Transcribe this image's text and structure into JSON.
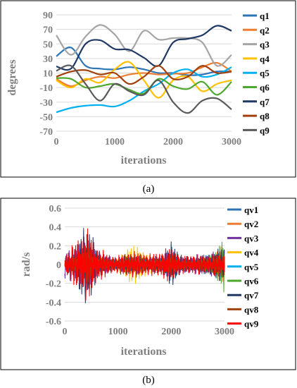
{
  "chart_data": [
    {
      "type": "line",
      "caption": "(a)",
      "xlabel": "iterations",
      "ylabel": "degrees",
      "xlim": [
        0,
        3000
      ],
      "ylim": [
        -70,
        90
      ],
      "xticks": [
        "0",
        "1000",
        "2000",
        "3000"
      ],
      "yticks": [
        "90",
        "70",
        "50",
        "30",
        "10",
        "-10",
        "-30",
        "-50",
        "-70"
      ],
      "grid": "horizontal",
      "legend_position": "right",
      "x": [
        0,
        250,
        500,
        750,
        1000,
        1250,
        1500,
        1750,
        2000,
        2250,
        2500,
        2750,
        3000
      ],
      "series": [
        {
          "name": "q1",
          "color": "#2e75b6",
          "values": [
            33,
            45,
            20,
            16,
            15,
            18,
            15,
            10,
            10,
            7,
            8,
            12,
            12
          ]
        },
        {
          "name": "q2",
          "color": "#ed7d31",
          "values": [
            2,
            -8,
            0,
            5,
            3,
            8,
            10,
            8,
            9,
            10,
            18,
            24,
            12
          ]
        },
        {
          "name": "q3",
          "color": "#a5a5a5",
          "values": [
            62,
            35,
            60,
            76,
            63,
            40,
            68,
            56,
            58,
            58,
            52,
            20,
            35
          ]
        },
        {
          "name": "q4",
          "color": "#ffc000",
          "values": [
            0,
            -10,
            2,
            -3,
            15,
            25,
            0,
            -24,
            0,
            5,
            -15,
            -5,
            0
          ]
        },
        {
          "name": "q5",
          "color": "#00b0f0",
          "values": [
            -44,
            -38,
            -35,
            -34,
            -36,
            -28,
            -15,
            -5,
            10,
            15,
            5,
            8,
            18
          ]
        },
        {
          "name": "q6",
          "color": "#4ea72e",
          "values": [
            3,
            2,
            -10,
            -8,
            -5,
            -13,
            -18,
            2,
            -8,
            -12,
            -2,
            -20,
            -2
          ]
        },
        {
          "name": "q7",
          "color": "#1f3864",
          "values": [
            19,
            16,
            50,
            55,
            43,
            42,
            31,
            20,
            52,
            57,
            62,
            75,
            68
          ]
        },
        {
          "name": "q8",
          "color": "#a0410e",
          "values": [
            5,
            12,
            14,
            8,
            10,
            -5,
            5,
            20,
            2,
            5,
            20,
            10,
            12
          ]
        },
        {
          "name": "q9",
          "color": "#595959",
          "values": [
            13,
            20,
            -5,
            -28,
            -5,
            -15,
            -20,
            0,
            -30,
            -45,
            -28,
            -25,
            -40
          ]
        }
      ]
    },
    {
      "type": "line",
      "caption": "(b)",
      "xlabel": "iterations",
      "ylabel": "rad/s",
      "xlim": [
        0,
        3000
      ],
      "ylim": [
        -0.6,
        0.6
      ],
      "xticks": [
        "0",
        "1000",
        "2000",
        "3000"
      ],
      "yticks": [
        "0.6",
        "0.4",
        "0.2",
        "0",
        "-0.2",
        "-0.4",
        "-0.6"
      ],
      "grid": "horizontal",
      "legend_position": "right",
      "x": [
        0,
        200,
        400,
        600,
        800,
        1000,
        1200,
        1400,
        1600,
        1800,
        2000,
        2200,
        2400,
        2600,
        2800,
        3000
      ],
      "series": [
        {
          "name": "qv1",
          "color": "#2e75b6",
          "values": [
            0.05,
            0.12,
            0.28,
            0.1,
            0.08,
            0.06,
            0.12,
            0.1,
            0.08,
            0.06,
            0.2,
            0.08,
            0.06,
            0.08,
            0.1,
            0.15
          ]
        },
        {
          "name": "qv2",
          "color": "#ed7d31",
          "values": [
            0.04,
            0.1,
            0.22,
            0.12,
            0.06,
            0.07,
            0.1,
            0.08,
            0.06,
            0.07,
            0.12,
            0.06,
            0.05,
            0.08,
            0.1,
            0.26
          ]
        },
        {
          "name": "qv3",
          "color": "#7030a0",
          "values": [
            0.18,
            0.2,
            0.3,
            0.15,
            0.1,
            0.08,
            0.1,
            0.12,
            0.08,
            0.1,
            0.15,
            0.08,
            0.1,
            0.12,
            0.14,
            0.12
          ]
        },
        {
          "name": "qv4",
          "color": "#ffc000",
          "values": [
            0.05,
            0.08,
            0.1,
            0.08,
            0.05,
            0.06,
            0.22,
            0.2,
            0.1,
            0.08,
            0.1,
            0.06,
            0.05,
            0.08,
            0.1,
            0.15
          ]
        },
        {
          "name": "qv5",
          "color": "#00b0f0",
          "values": [
            0.03,
            0.06,
            0.1,
            0.06,
            0.04,
            0.05,
            0.08,
            0.06,
            0.05,
            0.06,
            0.08,
            0.05,
            0.04,
            0.06,
            0.08,
            0.12
          ]
        },
        {
          "name": "qv6",
          "color": "#4ea72e",
          "values": [
            0.04,
            0.06,
            0.12,
            0.08,
            0.05,
            0.06,
            0.1,
            0.08,
            0.06,
            0.07,
            0.1,
            0.06,
            0.05,
            0.08,
            0.12,
            0.32
          ]
        },
        {
          "name": "qv7",
          "color": "#1f3864",
          "values": [
            0.06,
            0.15,
            0.52,
            0.18,
            0.08,
            0.06,
            0.12,
            0.1,
            0.08,
            0.1,
            0.25,
            0.1,
            0.08,
            0.1,
            0.15,
            0.2
          ]
        },
        {
          "name": "qv8",
          "color": "#a0410e",
          "values": [
            0.04,
            0.1,
            0.25,
            0.1,
            0.06,
            0.05,
            0.1,
            0.08,
            0.06,
            0.07,
            0.12,
            0.06,
            0.05,
            0.07,
            0.1,
            0.18
          ]
        },
        {
          "name": "qv9",
          "color": "#ff0000",
          "values": [
            0.12,
            0.25,
            0.42,
            0.22,
            0.12,
            0.1,
            0.15,
            0.14,
            0.12,
            0.15,
            0.2,
            0.1,
            0.12,
            0.1,
            0.12,
            0.12
          ]
        }
      ]
    }
  ]
}
